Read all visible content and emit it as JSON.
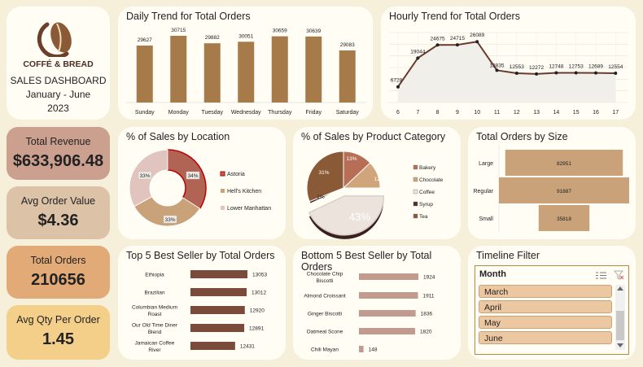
{
  "brand": {
    "name": "COFFÉ & BREAD",
    "dashboard_title": "SALES DASHBOARD",
    "period": "January - June",
    "year": "2023"
  },
  "kpis": [
    {
      "label": "Total Revenue",
      "value": "$633,906.48",
      "bg": "#cba08f"
    },
    {
      "label": "Avg Order Value",
      "value": "$4.36",
      "bg": "#dcc3a7"
    },
    {
      "label": "Total Orders",
      "value": "210656",
      "bg": "#e2aa77"
    },
    {
      "label": "Avg Qty Per Order",
      "value": "1.45",
      "bg": "#f4cf8a"
    }
  ],
  "colors": {
    "bar": "#a77a4a",
    "line": "#6b3a2e",
    "dark_bar": "#7a4a3a",
    "light_bar": "#c29a8e",
    "size_bar": "#c9a27a",
    "filter_item": "#ecc8a2",
    "location": [
      "#b26454",
      "#c9a27a",
      "#e0c4bd"
    ],
    "category": [
      "#b86e55",
      "#d1a57c",
      "#ece4dc",
      "#4e2c27",
      "#8a5a36"
    ]
  },
  "cards": {
    "daily": "Daily Trend for Total Orders",
    "hourly": "Hourly Trend for Total Orders",
    "location": "% of Sales by Location",
    "category": "% of Sales by Product Category",
    "size": "Total Orders by Size",
    "top5": "Top 5 Best Seller by Total Orders",
    "bottom5": "Bottom 5 Best Seller by Total Orders",
    "timeline": "Timeline Filter"
  },
  "timeline": {
    "header": "Month",
    "items": [
      "March",
      "April",
      "May",
      "June"
    ]
  },
  "chart_data": [
    {
      "id": "daily",
      "type": "bar",
      "title": "Daily Trend for Total Orders",
      "categories": [
        "Sunday",
        "Monday",
        "Tuesday",
        "Wednesday",
        "Thursday",
        "Friday",
        "Saturday"
      ],
      "values": [
        29627,
        30715,
        29882,
        30051,
        30659,
        30639,
        29083
      ],
      "labels": [
        "29627",
        "30715",
        "29882",
        "30051",
        "30659",
        "30639",
        "29083"
      ]
    },
    {
      "id": "hourly",
      "type": "line",
      "title": "Hourly Trend for Total Orders",
      "x": [
        "6",
        "7",
        "8",
        "9",
        "10",
        "11",
        "12",
        "13",
        "14",
        "15",
        "16",
        "17"
      ],
      "values": [
        6728,
        19044,
        24675,
        24715,
        26089,
        13835,
        12553,
        12272,
        12748,
        12753,
        12689,
        12554
      ],
      "labels": [
        "6728",
        "19044",
        "24675",
        "24715",
        "26089",
        "13835",
        "12553",
        "12272",
        "12748",
        "12753",
        "12689",
        "12554"
      ],
      "grid": true
    },
    {
      "id": "location",
      "type": "pie",
      "title": "% of Sales by Location",
      "categories": [
        "Astoria",
        "Hell's Kitchen",
        "Lower Manhattan"
      ],
      "values": [
        34,
        33,
        33
      ],
      "labels": [
        "34%",
        "33%",
        "33%"
      ],
      "legend": "right"
    },
    {
      "id": "category",
      "type": "pie",
      "title": "% of Sales by Product Category",
      "categories": [
        "Bakery",
        "Chocolate",
        "Coffee",
        "Syrup",
        "Tea"
      ],
      "values": [
        13,
        12,
        43,
        1,
        31
      ],
      "labels": [
        "13%",
        "12%",
        "43%",
        "1%",
        "31%"
      ],
      "legend": "right"
    },
    {
      "id": "size",
      "type": "bar",
      "title": "Total Orders by Size",
      "categories": [
        "Large",
        "Regular",
        "Small"
      ],
      "values": [
        82951,
        91887,
        35818
      ],
      "labels": [
        "82951",
        "91887",
        "35818"
      ]
    },
    {
      "id": "top5",
      "type": "bar",
      "title": "Top 5 Best Seller by Total Orders",
      "categories": [
        "Ethiopia",
        "Brazilian",
        "Columbian Medium Roast",
        "Our Old Time Diner Blend",
        "Jamaican Coffee River"
      ],
      "values": [
        13053,
        13012,
        12920,
        12891,
        12431
      ],
      "labels": [
        "13053",
        "13012",
        "12920",
        "12891",
        "12431"
      ]
    },
    {
      "id": "bottom5",
      "type": "bar",
      "title": "Bottom 5 Best Seller by Total Orders",
      "categories": [
        "Chocolate Chip Biscotti",
        "Almond Croissant",
        "Ginger Biscotti",
        "Oatmeal Scone",
        "Chili Mayan"
      ],
      "values": [
        1924,
        1911,
        1836,
        1820,
        148
      ],
      "labels": [
        "1924",
        "1911",
        "1836",
        "1820",
        "148"
      ]
    }
  ]
}
